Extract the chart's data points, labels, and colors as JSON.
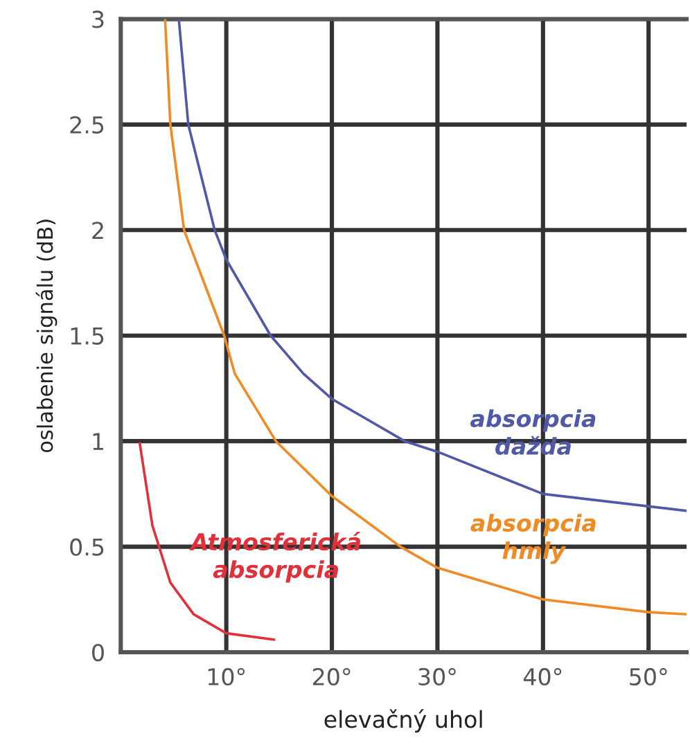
{
  "chart_data": {
    "type": "line",
    "xlabel": "elevačný uhol",
    "ylabel": "oslabenie signálu (dB)",
    "xlim": [
      0,
      53.6
    ],
    "ylim": [
      0,
      3
    ],
    "xticks": [
      {
        "value": 10,
        "label": "10°"
      },
      {
        "value": 20,
        "label": "20°"
      },
      {
        "value": 30,
        "label": "30°"
      },
      {
        "value": 40,
        "label": "40°"
      },
      {
        "value": 50,
        "label": "50°"
      }
    ],
    "yticks": [
      0,
      0.5,
      1,
      1.5,
      2,
      2.5,
      3
    ],
    "grid": true,
    "marker": "none",
    "line_style": "solid",
    "series": [
      {
        "name": "absorpcia\ndažda",
        "color": "#5058a8",
        "x": [
          5.5,
          6.4,
          8.9,
          10,
          14.2,
          17.3,
          20,
          26.9,
          30,
          40,
          53.6
        ],
        "values": [
          3,
          2.5,
          2,
          1.86,
          1.5,
          1.32,
          1.2,
          1,
          0.95,
          0.75,
          0.67
        ]
      },
      {
        "name": "absorpcia\nhmly",
        "color": "#f08a24",
        "x": [
          4.2,
          4.7,
          6.0,
          9.8,
          10.8,
          14.7,
          20,
          26.5,
          30,
          40,
          50,
          53.6
        ],
        "values": [
          3,
          2.5,
          2,
          1.5,
          1.32,
          1,
          0.74,
          0.5,
          0.4,
          0.25,
          0.19,
          0.18
        ]
      },
      {
        "name": "Atmosferická\nabsorpcia",
        "color": "#e0303a",
        "x": [
          1.8,
          3.0,
          4.7,
          6.9,
          10,
          14.5
        ],
        "values": [
          0.99,
          0.6,
          0.33,
          0.18,
          0.09,
          0.06
        ]
      }
    ]
  }
}
